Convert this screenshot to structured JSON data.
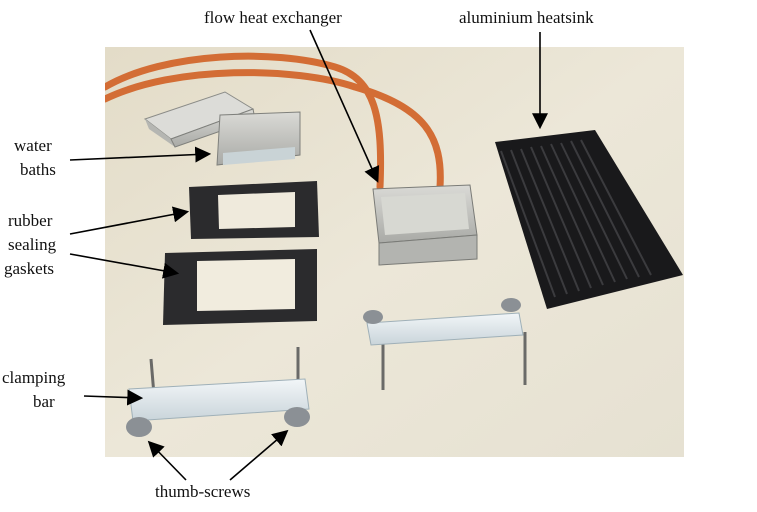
{
  "labels": {
    "flow_heat_exchanger": "flow heat exchanger",
    "aluminium_heatsink": "aluminium heatsink",
    "water_baths": [
      "water",
      "baths"
    ],
    "rubber_gaskets": [
      "rubber",
      "sealing",
      "gaskets"
    ],
    "clamping_bar": [
      "clamping",
      "bar"
    ],
    "thumb_screws": "thumb-screws"
  },
  "colors": {
    "tabletop": "#e9e4d3",
    "tubing": "#d9743a",
    "steel": "#c9c9c6",
    "gasket": "#2a2a2c",
    "heatsink": "#1a1a1c",
    "acrylic": "#e4ecef",
    "knob": "#8d9196"
  }
}
